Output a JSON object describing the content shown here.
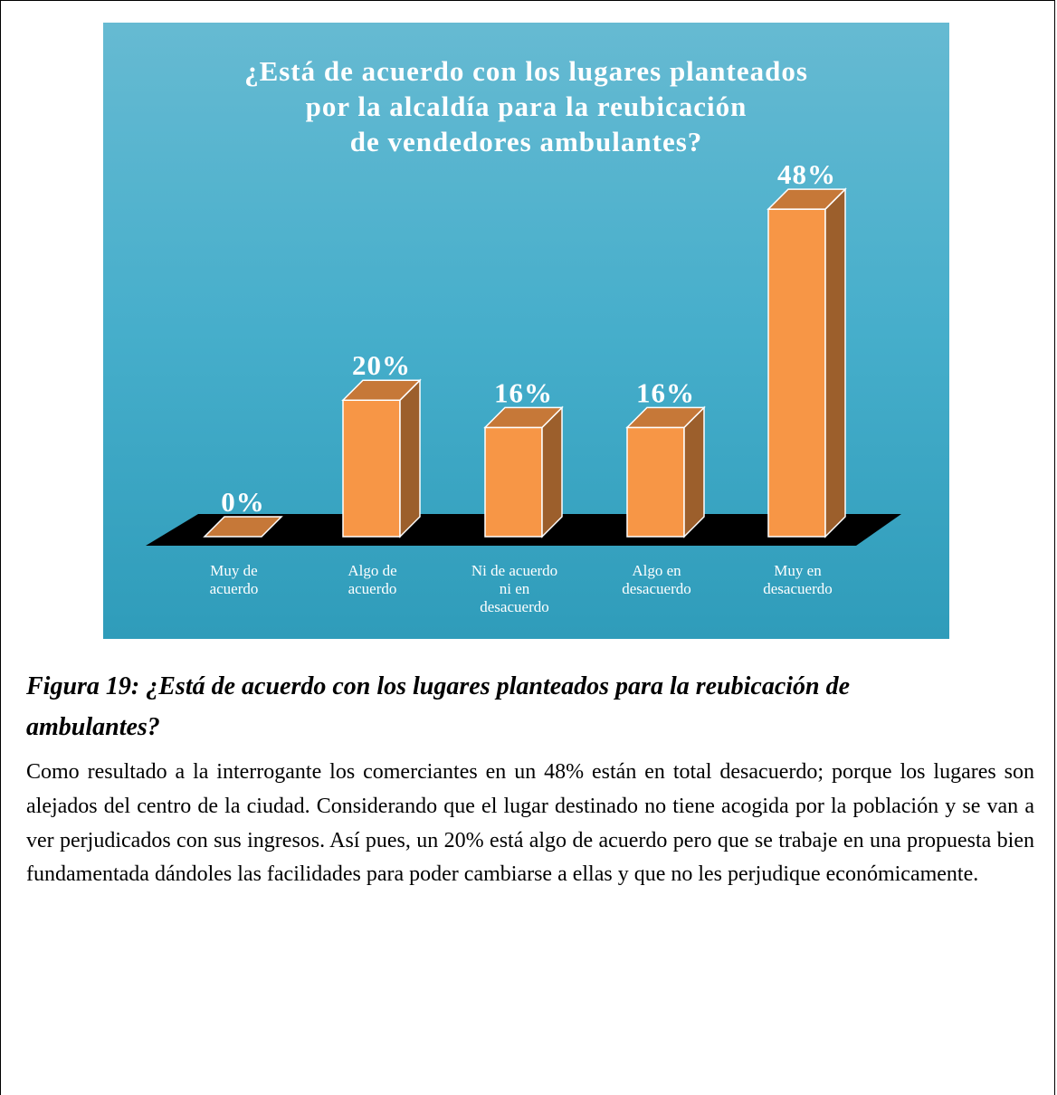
{
  "chart_data": {
    "type": "bar3d",
    "title": "¿Está de acuerdo con los lugares planteados\npor la alcaldía para la reubicación\nde vendedores ambulantes?",
    "categories": [
      "Muy de\nacuerdo",
      "Algo de\nacuerdo",
      "Ni de acuerdo\nni en\ndesacuerdo",
      "Algo en\ndesacuerdo",
      "Muy en\ndesacuerdo"
    ],
    "values": [
      0,
      20,
      16,
      16,
      48
    ],
    "value_labels": [
      "0%",
      "20%",
      "16%",
      "16%",
      "48%"
    ],
    "color": "#f79646",
    "ylim": [
      0,
      50
    ]
  },
  "caption": "Figura 19: ¿Está de acuerdo con los lugares planteados para la reubicación de\nambulantes?",
  "paragraph": "Como resultado a la interrogante los comerciantes en un 48% están en total desacuerdo; porque los lugares son alejados del centro de la ciudad. Considerando que el lugar destinado no tiene acogida por la población y se van a ver perjudicados con sus ingresos. Así pues, un 20% está algo de acuerdo pero que se trabaje en una propuesta bien fundamentada dándoles las facilidades para poder cambiarse a ellas y que no les perjudique económicamente."
}
